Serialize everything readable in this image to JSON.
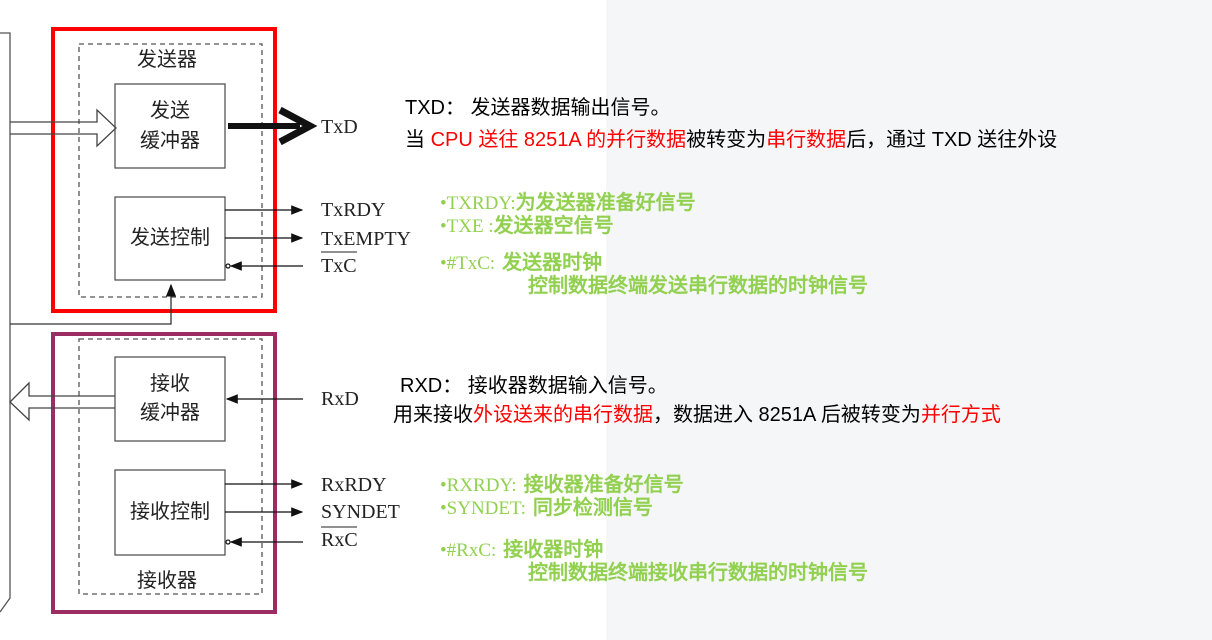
{
  "diagram": {
    "transmitter": {
      "title": "发送器",
      "buffer_line1": "发送",
      "buffer_line2": "缓冲器",
      "control": "发送控制",
      "signals": {
        "txd": "TxD",
        "txrdy": "TxRDY",
        "txempty": "TxEMPTY",
        "txc": "TxC"
      },
      "border_color": "#ff0000"
    },
    "receiver": {
      "title": "接收器",
      "buffer_line1": "接收",
      "buffer_line2": "缓冲器",
      "control": "接收控制",
      "signals": {
        "rxd": "RxD",
        "rxrdy": "RxRDY",
        "syndet": "SYNDET",
        "rxc": "RxC"
      },
      "border_color": "#9b2d62"
    }
  },
  "txd_note": {
    "line1": "TXD： 发送器数据输出信号。",
    "l2_a": "当 ",
    "l2_b": "CPU 送往 8251A 的并行数据",
    "l2_c": "被转变为",
    "l2_d": "串行数据",
    "l2_e": "后，通过 TXD 送往外设"
  },
  "rxd_note": {
    "line1": "RXD： 接收器数据输入信号。",
    "l2_a": "用来接收",
    "l2_b": "外设送来的串行数据",
    "l2_c": "，数据进入 8251A 后被转变为",
    "l2_d": "并行方式"
  },
  "tx_bullets": [
    {
      "prefix": "•TXRDY:",
      "text": "为发送器准备好信号"
    },
    {
      "prefix": "•TXE :",
      "text": "发送器空信号"
    },
    {
      "prefix": "•#TxC:",
      "text": " 发送器时钟"
    },
    {
      "prefix": "",
      "text": "控制数据终端发送串行数据的时钟信号"
    }
  ],
  "rx_bullets": [
    {
      "prefix": "•RXRDY:",
      "text": " 接收器准备好信号"
    },
    {
      "prefix": "•SYNDET:",
      "text": " 同步检测信号"
    },
    {
      "prefix": "•#RxC:",
      "text": " 接收器时钟"
    },
    {
      "prefix": "",
      "text": "控制数据终端接收串行数据的时钟信号"
    }
  ],
  "colors": {
    "highlight": "#ff0000",
    "bullet_green": "#92d050"
  }
}
